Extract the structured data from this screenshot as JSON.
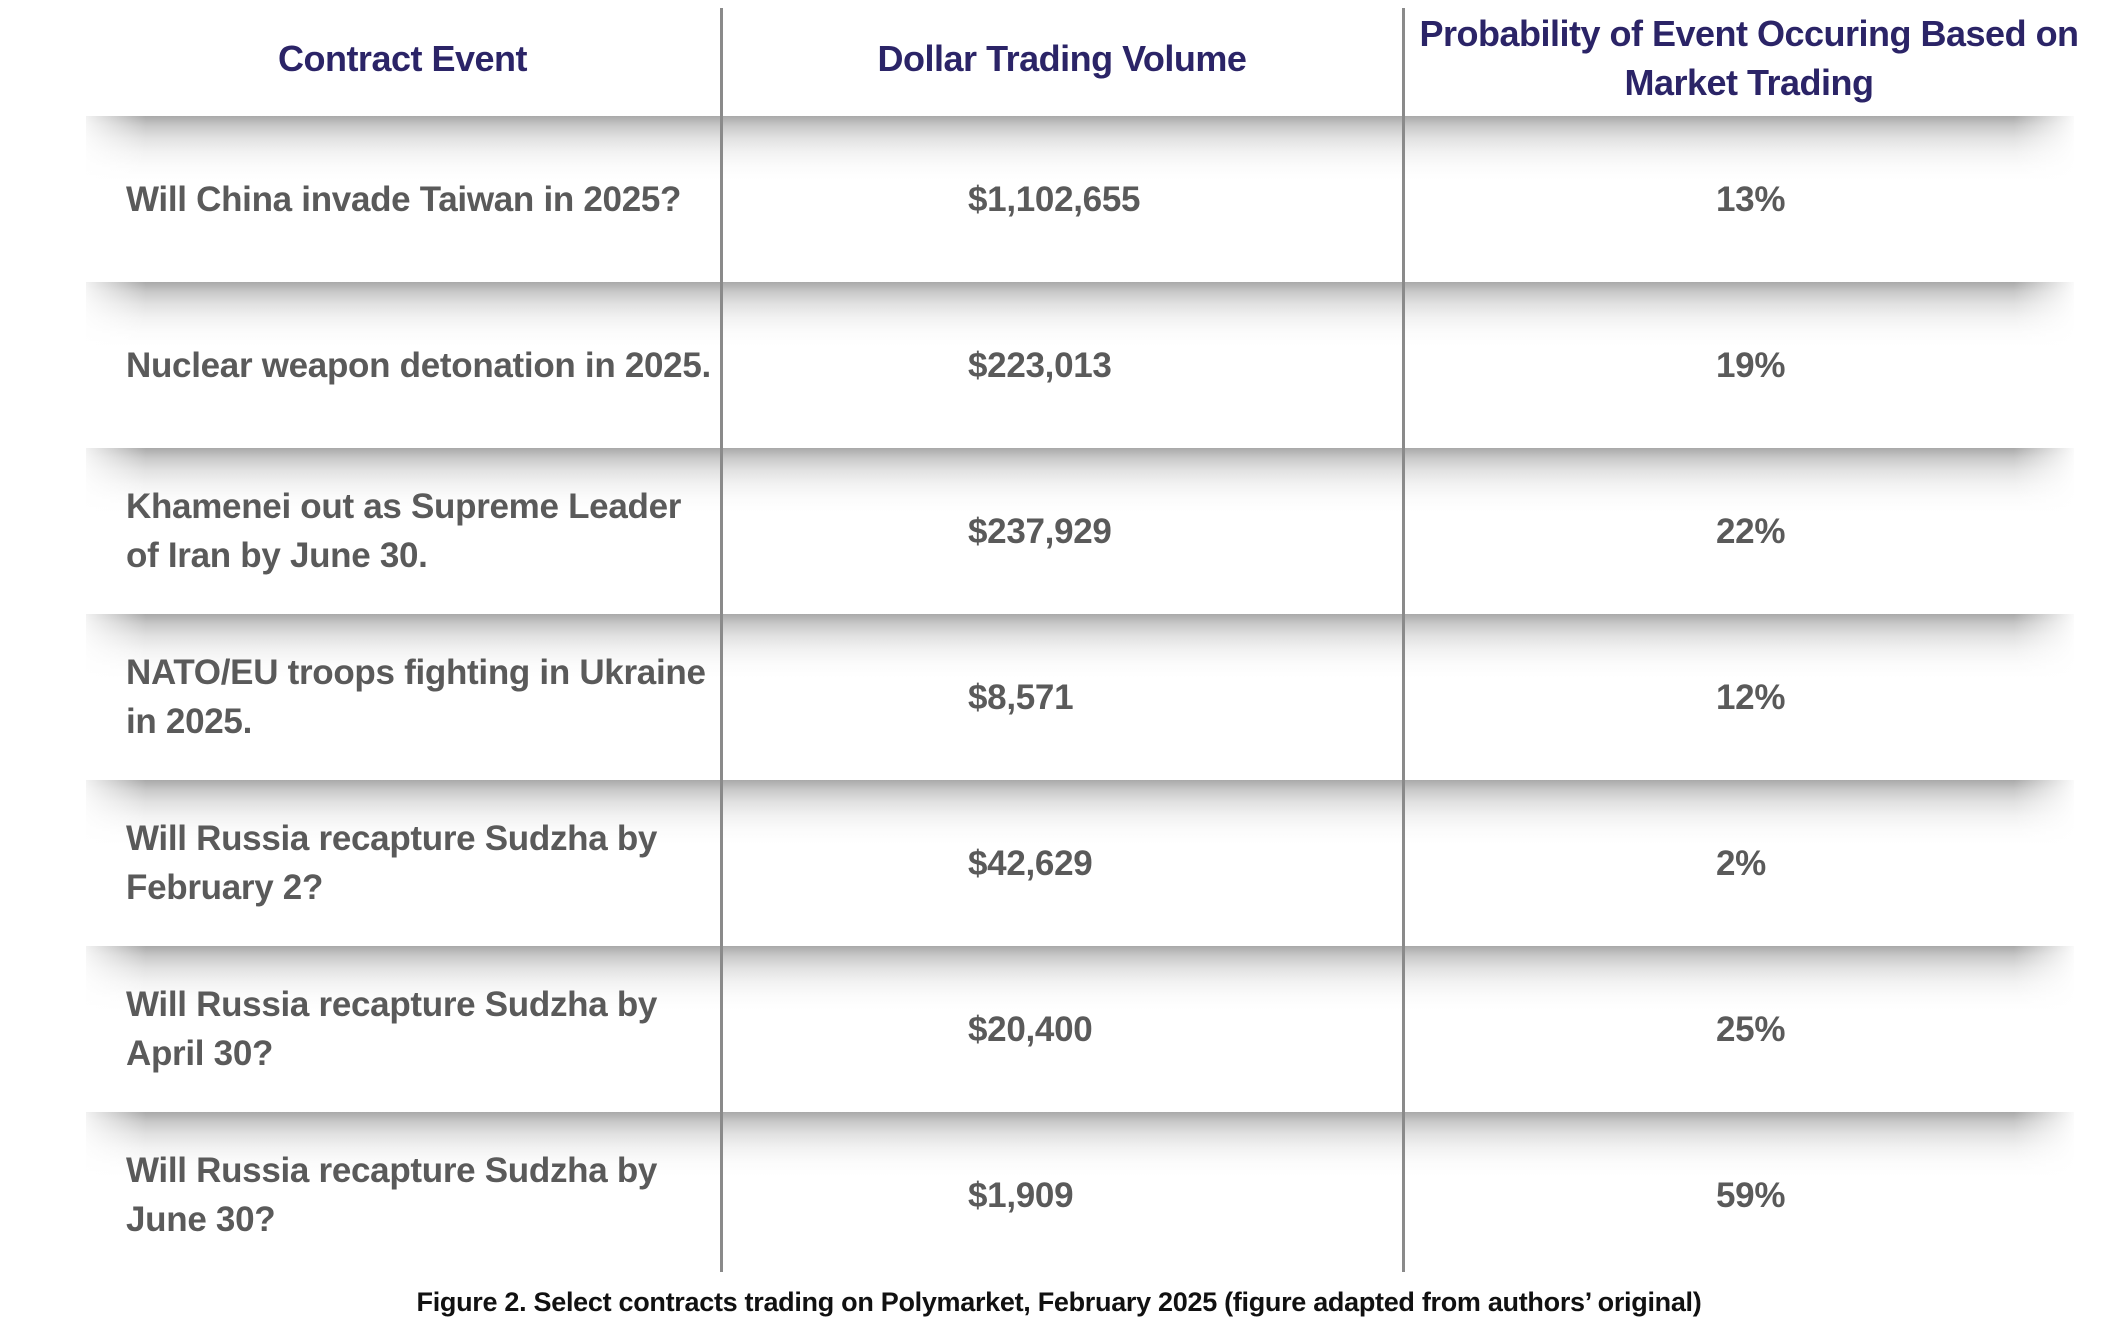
{
  "chart_data": {
    "type": "table",
    "columns": [
      "Contract Event",
      "Dollar Trading Volume",
      "Probability of Event Occuring Based on Market Trading"
    ],
    "rows": [
      {
        "event": "Will China invade Taiwan in 2025?",
        "volume": "$1,102,655",
        "probability": "13%"
      },
      {
        "event": "Nuclear weapon detonation in 2025.",
        "volume": "$223,013",
        "probability": "19%"
      },
      {
        "event": "Khamenei out as Supreme Leader of Iran by June 30.",
        "volume": "$237,929",
        "probability": "22%"
      },
      {
        "event": "NATO/EU troops fighting in Ukraine in 2025.",
        "volume": "$8,571",
        "probability": "12%"
      },
      {
        "event": "Will Russia recapture Sudzha by February 2?",
        "volume": "$42,629",
        "probability": "2%"
      },
      {
        "event": "Will Russia recapture Sudzha by April 30?",
        "volume": "$20,400",
        "probability": "25%"
      },
      {
        "event": "Will Russia recapture Sudzha by June 30?",
        "volume": "$1,909",
        "probability": "59%"
      }
    ],
    "caption": "Figure 2. Select contracts trading on Polymarket, February 2025 (figure adapted from authors’ original)"
  },
  "colors": {
    "header_text": "#2b2467",
    "cell_text": "#5a5a5a",
    "divider": "#8a8a8a",
    "caption_text": "#111111"
  }
}
